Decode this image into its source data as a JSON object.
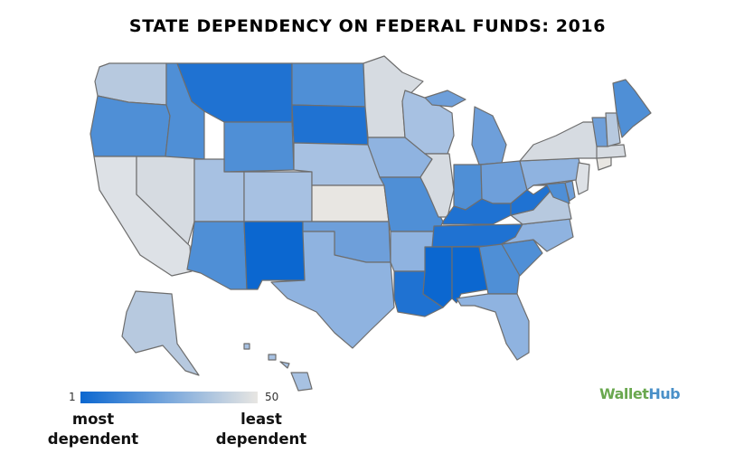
{
  "title": "STATE DEPENDENCY ON FEDERAL FUNDS: 2016",
  "legend": {
    "min_label": "1",
    "max_label": "50",
    "min_caption": "most dependent",
    "max_caption": "least dependent",
    "color_most": "#0b67d0",
    "color_mid": "#7aa8dc",
    "color_least": "#e8e6e2"
  },
  "brand": {
    "part1": "Wallet",
    "part2": "Hub"
  },
  "states": [
    {
      "id": "WA",
      "fill": "#b7c9df"
    },
    {
      "id": "OR",
      "fill": "#4f8fd6"
    },
    {
      "id": "ID",
      "fill": "#4f8fd6"
    },
    {
      "id": "MT",
      "fill": "#1f72d2"
    },
    {
      "id": "WY",
      "fill": "#4f8fd6"
    },
    {
      "id": "ND",
      "fill": "#4f8fd6"
    },
    {
      "id": "SD",
      "fill": "#1f72d2"
    },
    {
      "id": "MN",
      "fill": "#d6dbe1"
    },
    {
      "id": "WI",
      "fill": "#a7c1e2"
    },
    {
      "id": "MI",
      "fill": "#6e9fda"
    },
    {
      "id": "CA",
      "fill": "#dde1e6"
    },
    {
      "id": "NV",
      "fill": "#d6dbe1"
    },
    {
      "id": "UT",
      "fill": "#a7c1e2"
    },
    {
      "id": "CO",
      "fill": "#a7c1e2"
    },
    {
      "id": "NE",
      "fill": "#a7c1e2"
    },
    {
      "id": "KS",
      "fill": "#e8e6e2"
    },
    {
      "id": "IA",
      "fill": "#8fb3e0"
    },
    {
      "id": "IL",
      "fill": "#d6dbe1"
    },
    {
      "id": "IN",
      "fill": "#4f8fd6"
    },
    {
      "id": "OH",
      "fill": "#6e9fda"
    },
    {
      "id": "PA",
      "fill": "#8fb3e0"
    },
    {
      "id": "NY",
      "fill": "#d6dbe1"
    },
    {
      "id": "VT",
      "fill": "#6e9fda"
    },
    {
      "id": "NH",
      "fill": "#b7c9df"
    },
    {
      "id": "ME",
      "fill": "#4f8fd6"
    },
    {
      "id": "MA",
      "fill": "#d6dbe1"
    },
    {
      "id": "CT",
      "fill": "#e8e6e2"
    },
    {
      "id": "NJ",
      "fill": "#dde1e6"
    },
    {
      "id": "MD",
      "fill": "#4f8fd6"
    },
    {
      "id": "DE",
      "fill": "#6e9fda"
    },
    {
      "id": "WV",
      "fill": "#1f72d2"
    },
    {
      "id": "VA",
      "fill": "#b7c9df"
    },
    {
      "id": "KY",
      "fill": "#1f72d2"
    },
    {
      "id": "TN",
      "fill": "#1f72d2"
    },
    {
      "id": "NC",
      "fill": "#8fb3e0"
    },
    {
      "id": "SC",
      "fill": "#4f8fd6"
    },
    {
      "id": "GA",
      "fill": "#4f8fd6"
    },
    {
      "id": "FL",
      "fill": "#8fb3e0"
    },
    {
      "id": "AL",
      "fill": "#0b67d0"
    },
    {
      "id": "MS",
      "fill": "#0b67d0"
    },
    {
      "id": "LA",
      "fill": "#1f72d2"
    },
    {
      "id": "AR",
      "fill": "#8fb3e0"
    },
    {
      "id": "MO",
      "fill": "#4f8fd6"
    },
    {
      "id": "OK",
      "fill": "#6e9fda"
    },
    {
      "id": "TX",
      "fill": "#8fb3e0"
    },
    {
      "id": "NM",
      "fill": "#0b67d0"
    },
    {
      "id": "AZ",
      "fill": "#4f8fd6"
    },
    {
      "id": "AK",
      "fill": "#b7c9df"
    },
    {
      "id": "HI",
      "fill": "#a7c1e2"
    }
  ]
}
